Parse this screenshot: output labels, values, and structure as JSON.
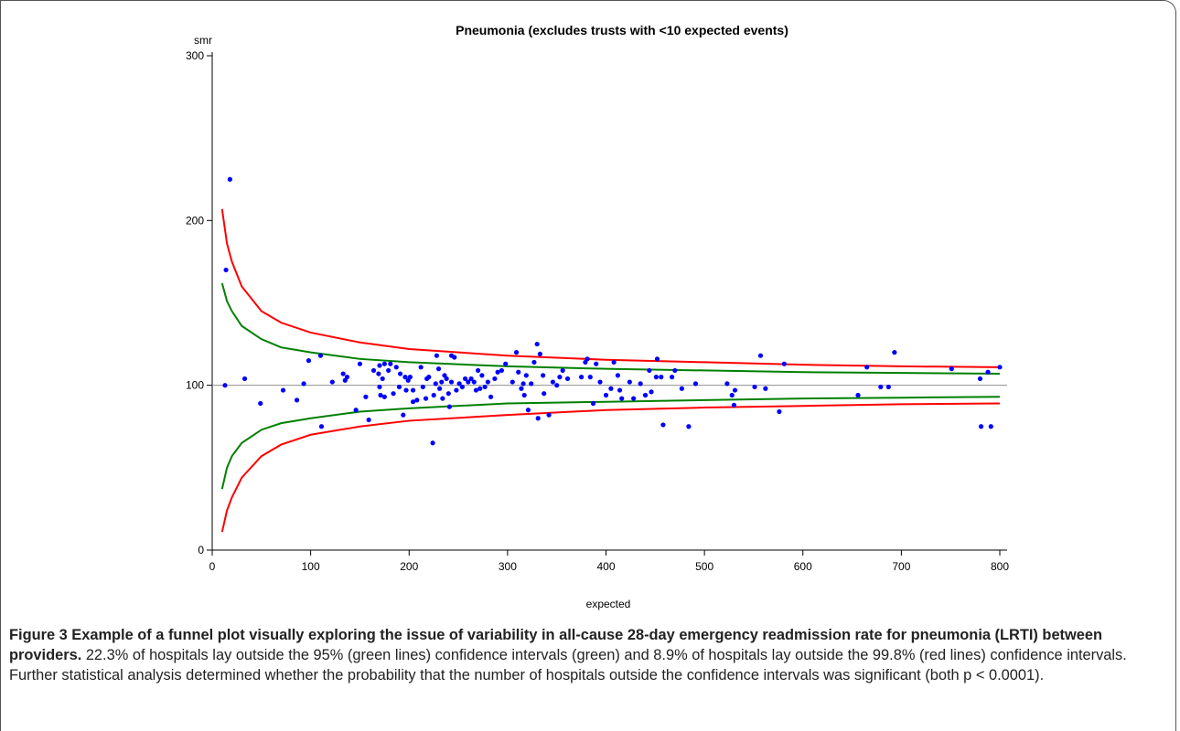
{
  "chart_data": {
    "type": "scatter",
    "title": "Pneumonia (excludes trusts with <10 expected events)",
    "y_label": "smr",
    "x_label": "expected",
    "xlim": [
      0,
      800
    ],
    "xticks": [
      0,
      100,
      200,
      300,
      400,
      500,
      600,
      700,
      800
    ],
    "ylim": [
      0,
      300
    ],
    "yticks": [
      0,
      100,
      200,
      300
    ],
    "hline": 100,
    "hline_color": "#909090",
    "series": [
      {
        "style": "points",
        "color": "#0000ff",
        "x": [
          14,
          18,
          13,
          33,
          49,
          72,
          86,
          93,
          98,
          110,
          111,
          122,
          133,
          135,
          137,
          146,
          150,
          156,
          159,
          164,
          169,
          170,
          170,
          171,
          173,
          175,
          175,
          179,
          181,
          184,
          187,
          190,
          191,
          194,
          196,
          197,
          199,
          201,
          204,
          204,
          208,
          212,
          214,
          217,
          218,
          220,
          224,
          225,
          227,
          228,
          230,
          231,
          233,
          234,
          236,
          238,
          240,
          241,
          243,
          243,
          246,
          248,
          251,
          254,
          257,
          260,
          263,
          266,
          268,
          270,
          272,
          274,
          277,
          280,
          283,
          287,
          290,
          294,
          298,
          305,
          309,
          311,
          314,
          316,
          317,
          319,
          321,
          324,
          327,
          330,
          331,
          333,
          336,
          337,
          342,
          346,
          350,
          353,
          356,
          361,
          375,
          379,
          381,
          384,
          387,
          390,
          394,
          400,
          405,
          408,
          412,
          414,
          416,
          424,
          428,
          435,
          440,
          444,
          446,
          451,
          452,
          456,
          458,
          467,
          470,
          477,
          484,
          491,
          523,
          528,
          530,
          531,
          551,
          557,
          562,
          576,
          581,
          656,
          665,
          679,
          687,
          693,
          751,
          780,
          781,
          788,
          791,
          800
        ],
        "values": [
          170,
          225,
          100,
          104,
          89,
          97,
          91,
          101,
          115,
          118,
          75,
          102,
          107,
          103,
          105,
          85,
          113,
          93,
          79,
          109,
          107,
          112,
          99,
          94,
          104,
          113,
          93,
          109,
          113,
          95,
          111,
          99,
          107,
          82,
          105,
          97,
          103,
          105,
          97,
          90,
          91,
          111,
          99,
          92,
          104,
          105,
          65,
          94,
          101,
          118,
          110,
          98,
          102,
          92,
          106,
          104,
          95,
          87,
          118,
          102,
          117,
          97,
          101,
          99,
          104,
          102,
          104,
          102,
          97,
          109,
          98,
          106,
          99,
          102,
          93,
          104,
          108,
          109,
          113,
          102,
          120,
          108,
          98,
          101,
          94,
          106,
          85,
          101,
          114,
          125,
          80,
          119,
          106,
          95,
          82,
          102,
          100,
          105,
          109,
          104,
          105,
          114,
          116,
          105,
          89,
          113,
          102,
          94,
          98,
          114,
          106,
          97,
          92,
          102,
          92,
          101,
          94,
          109,
          96,
          105,
          116,
          105,
          76,
          105,
          109,
          98,
          75,
          101,
          101,
          94,
          88,
          97,
          99,
          118,
          98,
          84,
          113,
          94,
          111,
          99,
          99,
          120,
          110,
          104,
          75,
          108,
          75,
          111
        ]
      },
      {
        "style": "line",
        "color": "#008000",
        "x": [
          10,
          15,
          20,
          30,
          50,
          70,
          100,
          150,
          200,
          300,
          400,
          500,
          600,
          700,
          800
        ],
        "values": [
          162,
          151,
          145,
          136,
          128,
          123,
          120,
          116,
          114,
          111.5,
          110,
          109,
          108,
          107.5,
          107
        ]
      },
      {
        "style": "line",
        "color": "#008000",
        "x": [
          10,
          15,
          20,
          30,
          50,
          70,
          100,
          150,
          200,
          300,
          400,
          500,
          600,
          700,
          800
        ],
        "values": [
          37,
          50,
          57,
          65,
          73,
          77,
          80,
          84,
          86,
          89,
          90,
          91,
          92,
          92.5,
          93
        ]
      },
      {
        "style": "line",
        "color": "#ff0000",
        "x": [
          10,
          15,
          20,
          30,
          50,
          70,
          100,
          150,
          200,
          300,
          400,
          500,
          600,
          700,
          800
        ],
        "values": [
          207,
          186,
          175,
          160,
          145,
          138,
          132,
          126,
          122,
          118,
          115.5,
          114,
          112.5,
          111.5,
          111
        ]
      },
      {
        "style": "line",
        "color": "#ff0000",
        "x": [
          10,
          15,
          20,
          30,
          50,
          70,
          100,
          150,
          200,
          300,
          400,
          500,
          600,
          700,
          800
        ],
        "values": [
          11,
          24,
          32,
          44,
          57,
          64,
          70,
          75,
          78.5,
          82,
          85,
          86.5,
          87.5,
          88.5,
          89
        ]
      }
    ]
  },
  "caption": {
    "bold": "Figure 3 Example of a funnel plot visually exploring the issue of variability in all-cause 28-day emergency readmission rate for pneumonia (LRTI) between providers.",
    "text": "22.3% of hospitals lay outside the 95% (green lines) confidence intervals (green) and 8.9% of hospitals lay outside the 99.8% (red lines) confidence intervals. Further statistical analysis determined whether the probability that the number of hospitals outside the confidence intervals was significant (both p < 0.0001)."
  }
}
